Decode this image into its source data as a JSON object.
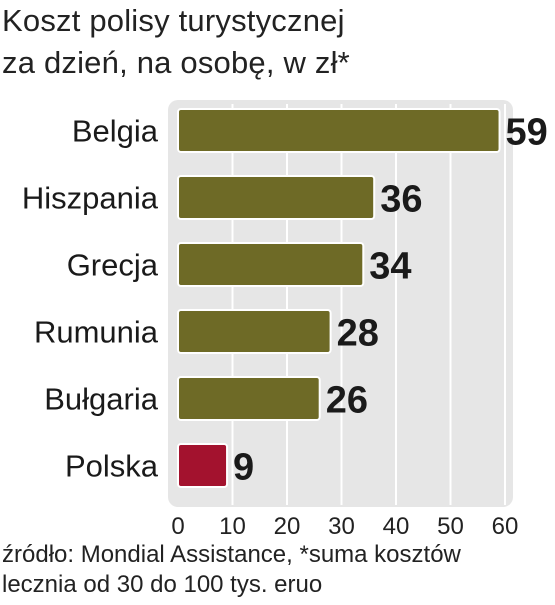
{
  "chart_data": {
    "type": "bar",
    "orientation": "horizontal",
    "title_lines": [
      "Koszt polisy turystycznej",
      "za dzień, na osobę, w zł*"
    ],
    "categories": [
      "Belgia",
      "Hiszpania",
      "Grecja",
      "Rumunia",
      "Bułgaria",
      "Polska"
    ],
    "values": [
      59,
      36,
      34,
      28,
      26,
      9
    ],
    "value_labels": [
      "59",
      "36",
      "34",
      "28",
      "26",
      "9"
    ],
    "bar_colors": [
      "#6e6a26",
      "#6e6a26",
      "#6e6a26",
      "#6e6a26",
      "#6e6a26",
      "#a3122e"
    ],
    "x_ticks": [
      0,
      10,
      20,
      30,
      40,
      50,
      60
    ],
    "x_tick_labels": [
      "0",
      "10",
      "20",
      "30",
      "40",
      "50",
      "60"
    ],
    "xlim": [
      0,
      60
    ],
    "grid": true,
    "source_lines": [
      "źródło: Mondial Assistance, *suma kosztów",
      "lecznia od 30 do 100 tys. eruo"
    ]
  },
  "colors": {
    "panel": "#e6e6e6",
    "grid": "#ffffff",
    "bar_outline": "#ffffff"
  }
}
